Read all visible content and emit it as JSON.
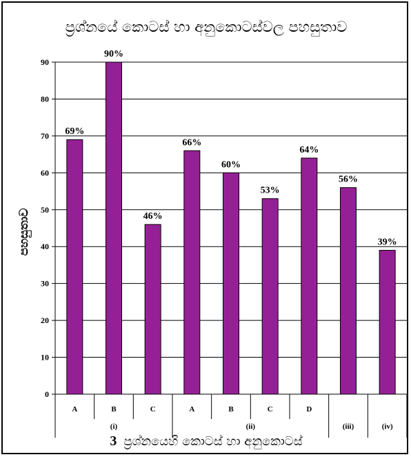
{
  "chart_data": {
    "type": "bar",
    "title": "ප්‍රශ්නයේ කොටස් හා අනුකොටස්වල පහසුතාව",
    "xlabel_number": "3",
    "xlabel": "ප්‍රශ්නයෙහි කොටස් හා අනුකොටස්",
    "ylabel": "පහසුතාව",
    "ylim": [
      0,
      90
    ],
    "yticks": [
      0,
      10,
      20,
      30,
      40,
      50,
      60,
      70,
      80,
      90
    ],
    "grid": true,
    "bar_color": "#952095",
    "categories": [
      "A",
      "B",
      "C",
      "A",
      "B",
      "C",
      "D",
      "",
      ""
    ],
    "values": [
      69,
      90,
      46,
      66,
      60,
      53,
      64,
      56,
      39
    ],
    "value_labels": [
      "69%",
      "90%",
      "46%",
      "66%",
      "60%",
      "53%",
      "64%",
      "56%",
      "39%"
    ],
    "groups": [
      {
        "label": "(i)",
        "start": 0,
        "count": 3
      },
      {
        "label": "(ii)",
        "start": 3,
        "count": 4
      },
      {
        "label": "(iii)",
        "start": 7,
        "count": 1
      },
      {
        "label": "(iv)",
        "start": 8,
        "count": 1
      }
    ]
  }
}
